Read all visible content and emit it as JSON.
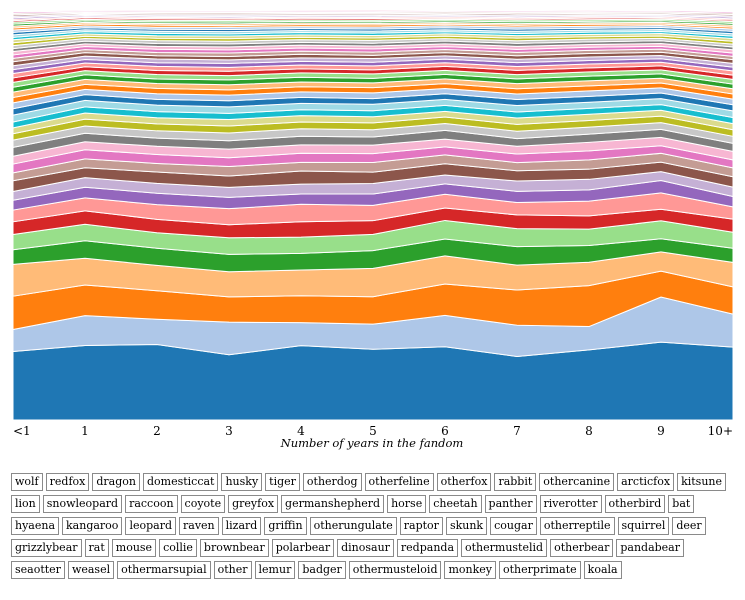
{
  "chart_data": {
    "type": "area",
    "stacked": true,
    "normalized": true,
    "xlabel": "Number of years in the fandom",
    "categories": [
      "<1",
      "1",
      "2",
      "3",
      "4",
      "5",
      "6",
      "7",
      "8",
      "9",
      "10+"
    ],
    "series": [
      {
        "name": "wolf",
        "values": [
          14.0,
          19.5,
          18.5,
          15.0,
          18.8,
          17.5,
          18.2,
          14.8,
          18.0,
          19.5,
          15.5
        ]
      },
      {
        "name": "redfox",
        "values": [
          4.5,
          7.8,
          6.2,
          7.5,
          5.8,
          6.2,
          7.8,
          7.3,
          6.0,
          11.3,
          7.0
        ]
      },
      {
        "name": "dragon",
        "values": [
          6.8,
          8.0,
          7.0,
          5.8,
          6.8,
          6.8,
          7.8,
          8.2,
          10.5,
          6.5,
          5.8
        ]
      },
      {
        "name": "domesticcat",
        "values": [
          6.5,
          7.0,
          6.2,
          5.8,
          6.5,
          7.0,
          7.0,
          5.8,
          6.0,
          4.8,
          5.2
        ]
      },
      {
        "name": "husky",
        "values": [
          3.0,
          4.6,
          4.2,
          4.0,
          4.2,
          4.4,
          4.2,
          4.3,
          4.3,
          3.3,
          3.0
        ]
      },
      {
        "name": "tiger",
        "values": [
          3.1,
          4.3,
          3.8,
          3.8,
          4.1,
          4.0,
          4.6,
          4.2,
          4.2,
          4.5,
          3.4
        ]
      },
      {
        "name": "otherdog",
        "values": [
          2.6,
          3.5,
          3.3,
          3.0,
          3.9,
          3.4,
          3.1,
          3.2,
          3.4,
          2.9,
          2.8
        ]
      },
      {
        "name": "otherfeline",
        "values": [
          2.4,
          3.4,
          3.6,
          3.7,
          4.4,
          3.8,
          3.4,
          2.9,
          3.8,
          4.1,
          2.6
        ]
      },
      {
        "name": "otherfox",
        "values": [
          2.0,
          2.8,
          2.8,
          2.6,
          2.6,
          2.8,
          2.6,
          2.6,
          2.9,
          3.1,
          2.2
        ]
      },
      {
        "name": "rabbit",
        "values": [
          1.8,
          2.5,
          2.4,
          2.3,
          2.5,
          2.6,
          2.2,
          2.4,
          2.7,
          2.2,
          2.0
        ]
      },
      {
        "name": "othercanine",
        "values": [
          2.2,
          2.6,
          2.8,
          2.6,
          3.3,
          2.8,
          2.8,
          2.4,
          2.6,
          2.4,
          2.2
        ]
      },
      {
        "name": "arcticfox",
        "values": [
          1.6,
          2.3,
          2.1,
          2.2,
          2.2,
          2.4,
          2.2,
          1.9,
          2.4,
          2.2,
          1.9
        ]
      },
      {
        "name": "kitsune",
        "values": [
          1.8,
          2.4,
          2.2,
          2.0,
          2.3,
          2.2,
          2.0,
          2.0,
          2.3,
          1.9,
          1.7
        ]
      },
      {
        "name": "lion",
        "values": [
          1.6,
          2.1,
          2.0,
          2.0,
          2.1,
          2.1,
          1.9,
          1.8,
          2.2,
          2.1,
          1.8
        ]
      },
      {
        "name": "snowleopard",
        "values": [
          1.8,
          2.2,
          2.0,
          1.9,
          2.2,
          2.0,
          2.2,
          1.8,
          2.1,
          2.0,
          1.7
        ]
      },
      {
        "name": "raccoon",
        "values": [
          1.5,
          1.9,
          1.8,
          1.8,
          1.9,
          1.8,
          1.7,
          1.7,
          1.8,
          1.7,
          1.5
        ]
      },
      {
        "name": "coyote",
        "values": [
          1.3,
          1.8,
          1.7,
          1.6,
          1.7,
          1.7,
          1.6,
          1.6,
          1.7,
          1.6,
          1.4
        ]
      },
      {
        "name": "greyfox",
        "values": [
          1.2,
          1.6,
          1.5,
          1.5,
          1.6,
          1.5,
          1.4,
          1.5,
          1.6,
          1.5,
          1.3
        ]
      },
      {
        "name": "germanshepherd",
        "values": [
          1.2,
          1.6,
          1.5,
          1.4,
          1.5,
          1.5,
          1.5,
          1.4,
          1.5,
          1.4,
          1.3
        ]
      },
      {
        "name": "horse",
        "values": [
          1.4,
          1.7,
          1.6,
          1.5,
          1.6,
          1.6,
          1.5,
          1.5,
          1.6,
          1.5,
          1.4
        ]
      },
      {
        "name": "cheetah",
        "values": [
          1.3,
          1.5,
          1.4,
          1.4,
          1.5,
          1.4,
          1.4,
          1.4,
          1.5,
          1.4,
          1.3
        ]
      },
      {
        "name": "panther",
        "values": [
          1.2,
          1.4,
          1.4,
          1.3,
          1.4,
          1.4,
          1.3,
          1.3,
          1.4,
          1.3,
          1.2
        ]
      },
      {
        "name": "riverotter",
        "values": [
          1.1,
          1.3,
          1.3,
          1.2,
          1.3,
          1.3,
          1.2,
          1.2,
          1.3,
          1.2,
          1.1
        ]
      },
      {
        "name": "otherbird",
        "values": [
          1.1,
          1.3,
          1.2,
          1.2,
          1.2,
          1.2,
          1.2,
          1.2,
          1.3,
          1.2,
          1.1
        ]
      },
      {
        "name": "bat",
        "values": [
          1.0,
          1.2,
          1.1,
          1.1,
          1.2,
          1.1,
          1.1,
          1.1,
          1.2,
          1.1,
          1.0
        ]
      },
      {
        "name": "hyaena",
        "values": [
          1.0,
          1.1,
          1.1,
          1.0,
          1.1,
          1.1,
          1.0,
          1.0,
          1.1,
          1.0,
          1.0
        ]
      },
      {
        "name": "kangaroo",
        "values": [
          0.9,
          1.0,
          1.0,
          1.0,
          1.0,
          1.0,
          1.0,
          1.0,
          1.0,
          1.0,
          0.9
        ]
      },
      {
        "name": "leopard",
        "values": [
          0.9,
          1.0,
          1.0,
          0.9,
          1.0,
          1.0,
          0.9,
          0.9,
          1.0,
          0.9,
          0.9
        ]
      },
      {
        "name": "raven",
        "values": [
          0.8,
          0.9,
          0.9,
          0.9,
          0.9,
          0.9,
          0.9,
          0.9,
          0.9,
          0.9,
          0.8
        ]
      },
      {
        "name": "lizard",
        "values": [
          0.8,
          0.9,
          0.9,
          0.8,
          0.9,
          0.9,
          0.8,
          0.8,
          0.9,
          0.8,
          0.8
        ]
      },
      {
        "name": "griffin",
        "values": [
          0.8,
          0.9,
          0.8,
          0.8,
          0.9,
          0.8,
          0.8,
          0.8,
          0.9,
          0.8,
          0.8
        ]
      },
      {
        "name": "otherungulate",
        "values": [
          0.7,
          0.8,
          0.8,
          0.8,
          0.8,
          0.8,
          0.8,
          0.8,
          0.8,
          0.8,
          0.7
        ]
      },
      {
        "name": "raptor",
        "values": [
          0.7,
          0.8,
          0.8,
          0.7,
          0.8,
          0.8,
          0.7,
          0.7,
          0.8,
          0.7,
          0.7
        ]
      },
      {
        "name": "skunk",
        "values": [
          0.7,
          0.7,
          0.7,
          0.7,
          0.7,
          0.7,
          0.7,
          0.7,
          0.7,
          0.7,
          0.7
        ]
      },
      {
        "name": "cougar",
        "values": [
          0.6,
          0.7,
          0.7,
          0.7,
          0.7,
          0.7,
          0.7,
          0.7,
          0.7,
          0.7,
          0.6
        ]
      },
      {
        "name": "otherreptile",
        "values": [
          0.6,
          0.7,
          0.7,
          0.6,
          0.7,
          0.7,
          0.6,
          0.6,
          0.7,
          0.6,
          0.6
        ]
      },
      {
        "name": "squirrel",
        "values": [
          0.6,
          0.6,
          0.6,
          0.6,
          0.6,
          0.6,
          0.6,
          0.6,
          0.6,
          0.6,
          0.6
        ]
      },
      {
        "name": "deer",
        "values": [
          0.6,
          0.6,
          0.6,
          0.6,
          0.6,
          0.6,
          0.6,
          0.6,
          0.6,
          0.6,
          0.6
        ]
      },
      {
        "name": "grizzlybear",
        "values": [
          0.5,
          0.6,
          0.6,
          0.5,
          0.6,
          0.6,
          0.5,
          0.5,
          0.6,
          0.5,
          0.5
        ]
      },
      {
        "name": "rat",
        "values": [
          0.5,
          0.5,
          0.5,
          0.5,
          0.5,
          0.5,
          0.5,
          0.5,
          0.5,
          0.5,
          0.5
        ]
      },
      {
        "name": "mouse",
        "values": [
          0.5,
          0.5,
          0.5,
          0.5,
          0.5,
          0.5,
          0.5,
          0.5,
          0.5,
          0.5,
          0.5
        ]
      },
      {
        "name": "collie",
        "values": [
          0.5,
          0.5,
          0.5,
          0.5,
          0.5,
          0.5,
          0.5,
          0.5,
          0.5,
          0.5,
          0.5
        ]
      },
      {
        "name": "brownbear",
        "values": [
          0.4,
          0.5,
          0.5,
          0.4,
          0.5,
          0.5,
          0.4,
          0.4,
          0.5,
          0.4,
          0.4
        ]
      },
      {
        "name": "polarbear",
        "values": [
          0.4,
          0.4,
          0.4,
          0.4,
          0.4,
          0.4,
          0.4,
          0.4,
          0.4,
          0.4,
          0.4
        ]
      },
      {
        "name": "dinosaur",
        "values": [
          0.4,
          0.4,
          0.4,
          0.4,
          0.4,
          0.4,
          0.4,
          0.4,
          0.4,
          0.4,
          0.4
        ]
      },
      {
        "name": "redpanda",
        "values": [
          0.4,
          0.4,
          0.4,
          0.4,
          0.4,
          0.4,
          0.4,
          0.4,
          0.4,
          0.4,
          0.4
        ]
      },
      {
        "name": "othermustelid",
        "values": [
          0.3,
          0.4,
          0.4,
          0.3,
          0.4,
          0.4,
          0.3,
          0.3,
          0.4,
          0.3,
          0.3
        ]
      },
      {
        "name": "otherbear",
        "values": [
          0.3,
          0.3,
          0.3,
          0.3,
          0.3,
          0.3,
          0.3,
          0.3,
          0.3,
          0.3,
          0.3
        ]
      },
      {
        "name": "pandabear",
        "values": [
          0.3,
          0.3,
          0.3,
          0.3,
          0.3,
          0.3,
          0.3,
          0.3,
          0.3,
          0.3,
          0.3
        ]
      },
      {
        "name": "seaotter",
        "values": [
          0.3,
          0.3,
          0.3,
          0.3,
          0.3,
          0.3,
          0.3,
          0.3,
          0.3,
          0.3,
          0.3
        ]
      },
      {
        "name": "weasel",
        "values": [
          0.3,
          0.3,
          0.3,
          0.3,
          0.3,
          0.3,
          0.3,
          0.3,
          0.3,
          0.3,
          0.3
        ]
      },
      {
        "name": "othermarsupial",
        "values": [
          0.3,
          0.3,
          0.3,
          0.3,
          0.3,
          0.3,
          0.3,
          0.3,
          0.3,
          0.3,
          0.3
        ]
      },
      {
        "name": "other",
        "values": [
          0.3,
          0.3,
          0.3,
          0.3,
          0.3,
          0.3,
          0.3,
          0.3,
          0.3,
          0.3,
          0.3
        ]
      },
      {
        "name": "lemur",
        "values": [
          0.2,
          0.3,
          0.3,
          0.2,
          0.3,
          0.3,
          0.2,
          0.2,
          0.3,
          0.2,
          0.2
        ]
      },
      {
        "name": "badger",
        "values": [
          0.2,
          0.2,
          0.2,
          0.2,
          0.2,
          0.2,
          0.2,
          0.2,
          0.2,
          0.2,
          0.2
        ]
      },
      {
        "name": "othermusteloid",
        "values": [
          0.2,
          0.2,
          0.2,
          0.2,
          0.2,
          0.2,
          0.2,
          0.2,
          0.2,
          0.2,
          0.2
        ]
      },
      {
        "name": "monkey",
        "values": [
          0.2,
          0.2,
          0.2,
          0.2,
          0.2,
          0.2,
          0.2,
          0.2,
          0.2,
          0.2,
          0.2
        ]
      },
      {
        "name": "otherprimate",
        "values": [
          0.2,
          0.2,
          0.2,
          0.2,
          0.2,
          0.2,
          0.2,
          0.2,
          0.2,
          0.2,
          0.2
        ]
      },
      {
        "name": "koala",
        "values": [
          0.2,
          0.2,
          0.2,
          0.2,
          0.2,
          0.2,
          0.2,
          0.2,
          0.2,
          0.2,
          0.2
        ]
      }
    ],
    "colors": [
      "#1f77b4",
      "#aec7e8",
      "#ff7f0e",
      "#ffbb78",
      "#2ca02c",
      "#98df8a",
      "#d62728",
      "#ff9896",
      "#9467bd",
      "#c5b0d5",
      "#8c564b",
      "#c49c94",
      "#e377c2",
      "#f7b6d2",
      "#7f7f7f",
      "#c7c7c7",
      "#bcbd22",
      "#dbdb8d",
      "#17becf",
      "#9edae5"
    ],
    "legend": "buttons-below",
    "grid": false
  }
}
